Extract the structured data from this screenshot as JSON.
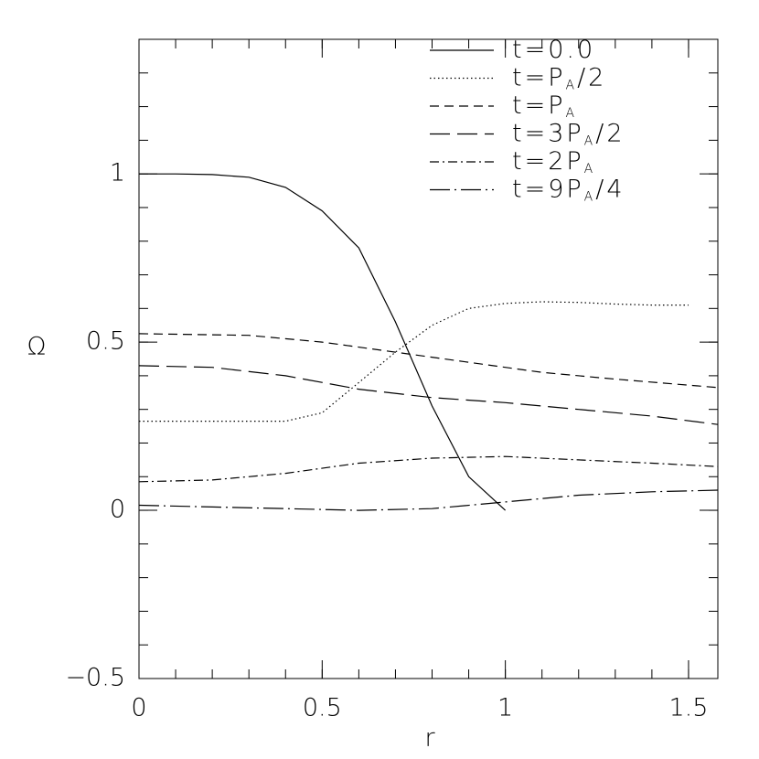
{
  "chart_data": {
    "type": "line",
    "x_label": "r",
    "y_label": "Ω",
    "xlim": [
      0,
      1.58
    ],
    "ylim": [
      -0.5,
      1.4
    ],
    "xticks": [
      0,
      0.5,
      1,
      1.5
    ],
    "yticks": [
      {
        "value": -0.5,
        "label": "−0.5"
      },
      0,
      0.5,
      1
    ],
    "legend": "top-right",
    "series": [
      {
        "name": "t=0.0",
        "color": "#000000",
        "dash": "none",
        "x": [
          0,
          0.1,
          0.2,
          0.3,
          0.4,
          0.5,
          0.6,
          0.7,
          0.8,
          0.9,
          1.0
        ],
        "values": [
          1,
          1,
          0.998,
          0.99,
          0.96,
          0.89,
          0.78,
          0.56,
          0.31,
          0.1,
          0
        ]
      },
      {
        "name": "t=PA/2",
        "color": "#000000",
        "dash": "1.5,3",
        "x": [
          0,
          0.2,
          0.4,
          0.5,
          0.6,
          0.7,
          0.8,
          0.9,
          1.0,
          1.1,
          1.2,
          1.3,
          1.4,
          1.5
        ],
        "values": [
          0.265,
          0.265,
          0.265,
          0.29,
          0.38,
          0.47,
          0.55,
          0.6,
          0.615,
          0.62,
          0.618,
          0.613,
          0.61,
          0.61
        ]
      },
      {
        "name": "t=PA",
        "color": "#000000",
        "dash": "10,6",
        "x": [
          0,
          0.3,
          0.5,
          0.7,
          0.9,
          1.1,
          1.3,
          1.58
        ],
        "values": [
          0.525,
          0.52,
          0.5,
          0.47,
          0.44,
          0.41,
          0.39,
          0.365
        ]
      },
      {
        "name": "t=3PA/2",
        "color": "#000000",
        "dash": "22,8",
        "x": [
          0,
          0.2,
          0.4,
          0.6,
          0.8,
          1.0,
          1.2,
          1.4,
          1.58
        ],
        "values": [
          0.43,
          0.425,
          0.4,
          0.36,
          0.335,
          0.32,
          0.3,
          0.28,
          0.255
        ]
      },
      {
        "name": "t=2PA",
        "color": "#000000",
        "dash": "10,4,2,4",
        "x": [
          0,
          0.2,
          0.4,
          0.6,
          0.8,
          1.0,
          1.2,
          1.4,
          1.58
        ],
        "values": [
          0.085,
          0.09,
          0.11,
          0.14,
          0.155,
          0.16,
          0.15,
          0.14,
          0.13
        ]
      },
      {
        "name": "t=9PA/4",
        "color": "#000000",
        "dash": "22,5,2,5",
        "x": [
          0,
          0.2,
          0.4,
          0.6,
          0.8,
          1.0,
          1.2,
          1.4,
          1.58
        ],
        "values": [
          0.015,
          0.01,
          0.005,
          0,
          0.005,
          0.025,
          0.045,
          0.055,
          0.06
        ]
      }
    ]
  }
}
